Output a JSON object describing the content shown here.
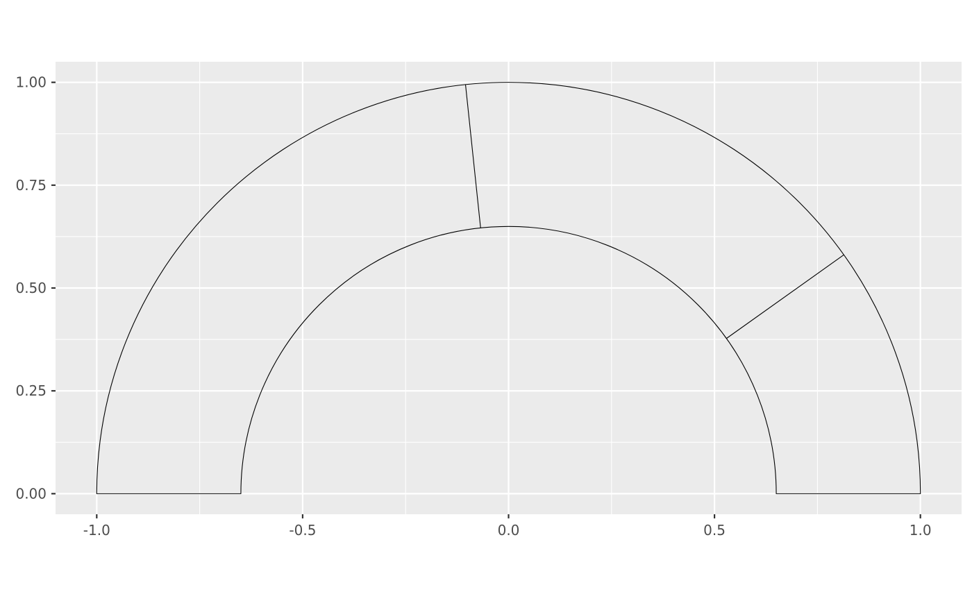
{
  "chart_data": {
    "type": "arc-gauge",
    "title": "",
    "xlabel": "",
    "ylabel": "",
    "xlim": [
      -1.1,
      1.1
    ],
    "ylim": [
      -0.05,
      1.05
    ],
    "grid": true,
    "panel_background": "#ebebeb",
    "grid_color": "#ffffff",
    "outline_color": "#000000",
    "x_ticks": [
      {
        "value": -1.0,
        "label": "-1.0"
      },
      {
        "value": -0.5,
        "label": "-0.5"
      },
      {
        "value": 0.0,
        "label": "0.0"
      },
      {
        "value": 0.5,
        "label": "0.5"
      },
      {
        "value": 1.0,
        "label": "1.0"
      }
    ],
    "y_ticks": [
      {
        "value": 0.0,
        "label": "0.00"
      },
      {
        "value": 0.25,
        "label": "0.25"
      },
      {
        "value": 0.5,
        "label": "0.50"
      },
      {
        "value": 0.75,
        "label": "0.75"
      },
      {
        "value": 1.0,
        "label": "1.00"
      }
    ],
    "x_minor": [
      -0.75,
      -0.25,
      0.25,
      0.75
    ],
    "y_minor": [
      0.125,
      0.375,
      0.625,
      0.875
    ],
    "center": [
      0,
      0
    ],
    "inner_radius": 0.65,
    "outer_radius": 1.0,
    "divider_angles_deg": [
      96.0,
      35.5
    ]
  }
}
